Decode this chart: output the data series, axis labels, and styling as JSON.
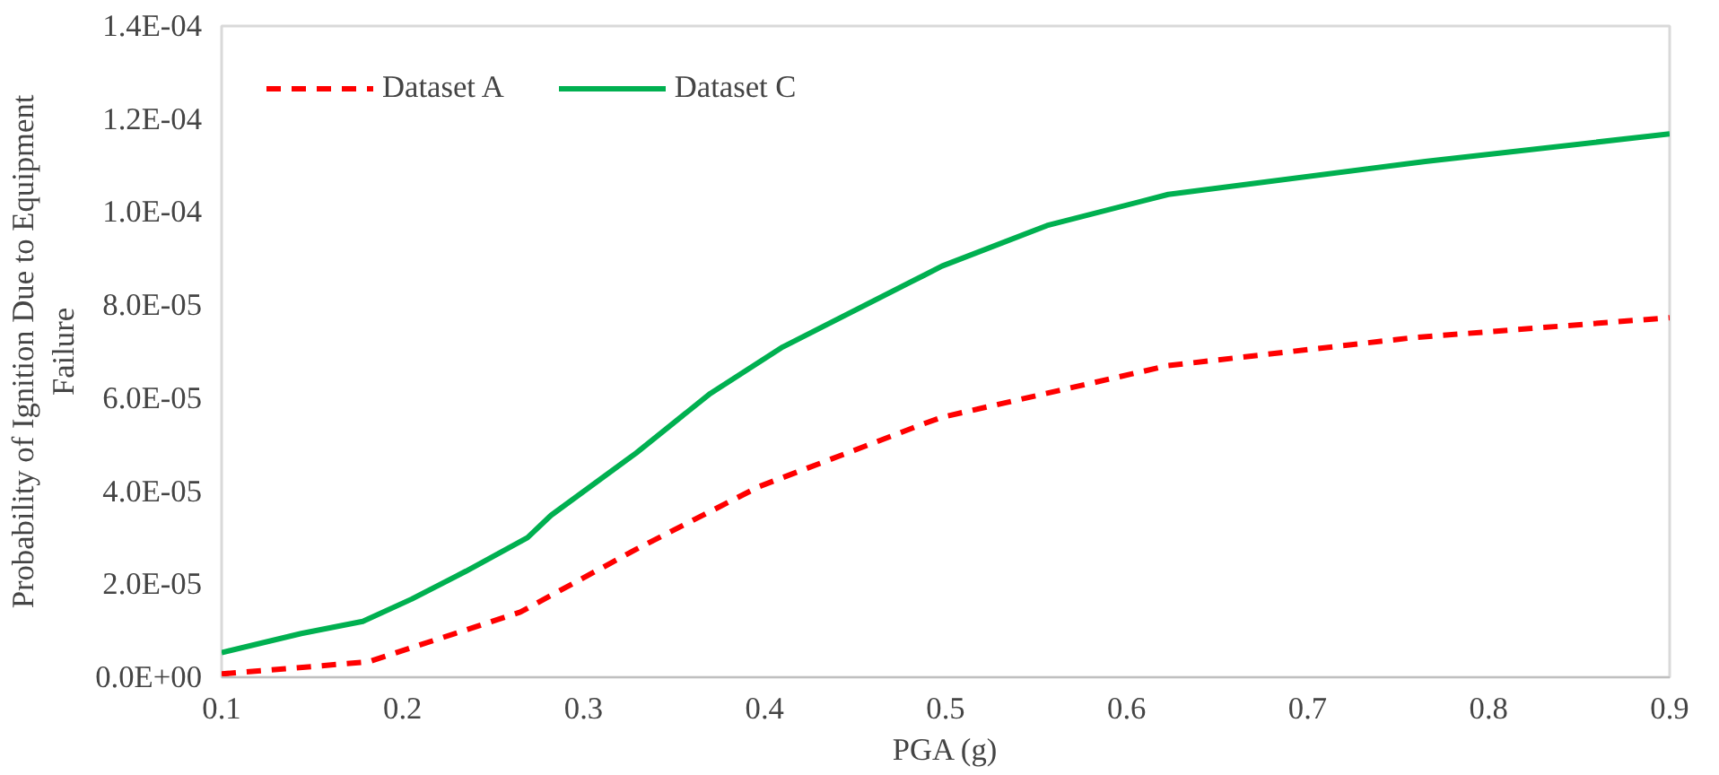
{
  "chart_data": {
    "type": "line",
    "xlabel": "PGA (g)",
    "ylabel": "Probability of Ignition Due to Equipment Failure",
    "xlim": [
      0.1,
      0.9
    ],
    "xticks": [
      0.1,
      0.2,
      0.3,
      0.4,
      0.5,
      0.6,
      0.7,
      0.8,
      0.9
    ],
    "ylim": [
      0,
      0.00014
    ],
    "yticks": [
      {
        "value": 0,
        "label": "0.0E+00"
      },
      {
        "value": 2e-05,
        "label": "2.0E-05"
      },
      {
        "value": 4e-05,
        "label": "4.0E-05"
      },
      {
        "value": 6e-05,
        "label": "6.0E-05"
      },
      {
        "value": 8e-05,
        "label": "8.0E-05"
      },
      {
        "value": 0.0001,
        "label": "1.0E-04"
      },
      {
        "value": 0.00012,
        "label": "1.2E-04"
      },
      {
        "value": 0.00014,
        "label": "1.4E-04"
      }
    ],
    "grid": false,
    "legend": "top left",
    "series": [
      {
        "name": "Dataset A",
        "color": "#ff0000",
        "line_style": "dashed",
        "x": [
          0.1,
          0.181,
          0.265,
          0.329,
          0.397,
          0.488,
          0.498,
          0.623,
          0.758,
          0.9
        ],
        "values": [
          7e-07,
          3.3e-06,
          1.4e-05,
          2.75e-05,
          4.1e-05,
          5.45e-05,
          5.59e-05,
          6.7e-05,
          7.3e-05,
          7.73e-05
        ]
      },
      {
        "name": "Dataset C",
        "color": "#00b050",
        "line_style": "solid",
        "x": [
          0.1,
          0.144,
          0.178,
          0.205,
          0.235,
          0.269,
          0.282,
          0.329,
          0.37,
          0.41,
          0.488,
          0.498,
          0.556,
          0.623,
          0.765,
          0.9
        ],
        "values": [
          5.3e-06,
          9.4e-06,
          1.2e-05,
          1.68e-05,
          2.28e-05,
          3e-05,
          3.48e-05,
          4.82e-05,
          6.1e-05,
          7.1e-05,
          8.64e-05,
          8.84e-05,
          9.71e-05,
          0.0001038,
          0.0001109,
          0.0001168
        ]
      }
    ]
  }
}
